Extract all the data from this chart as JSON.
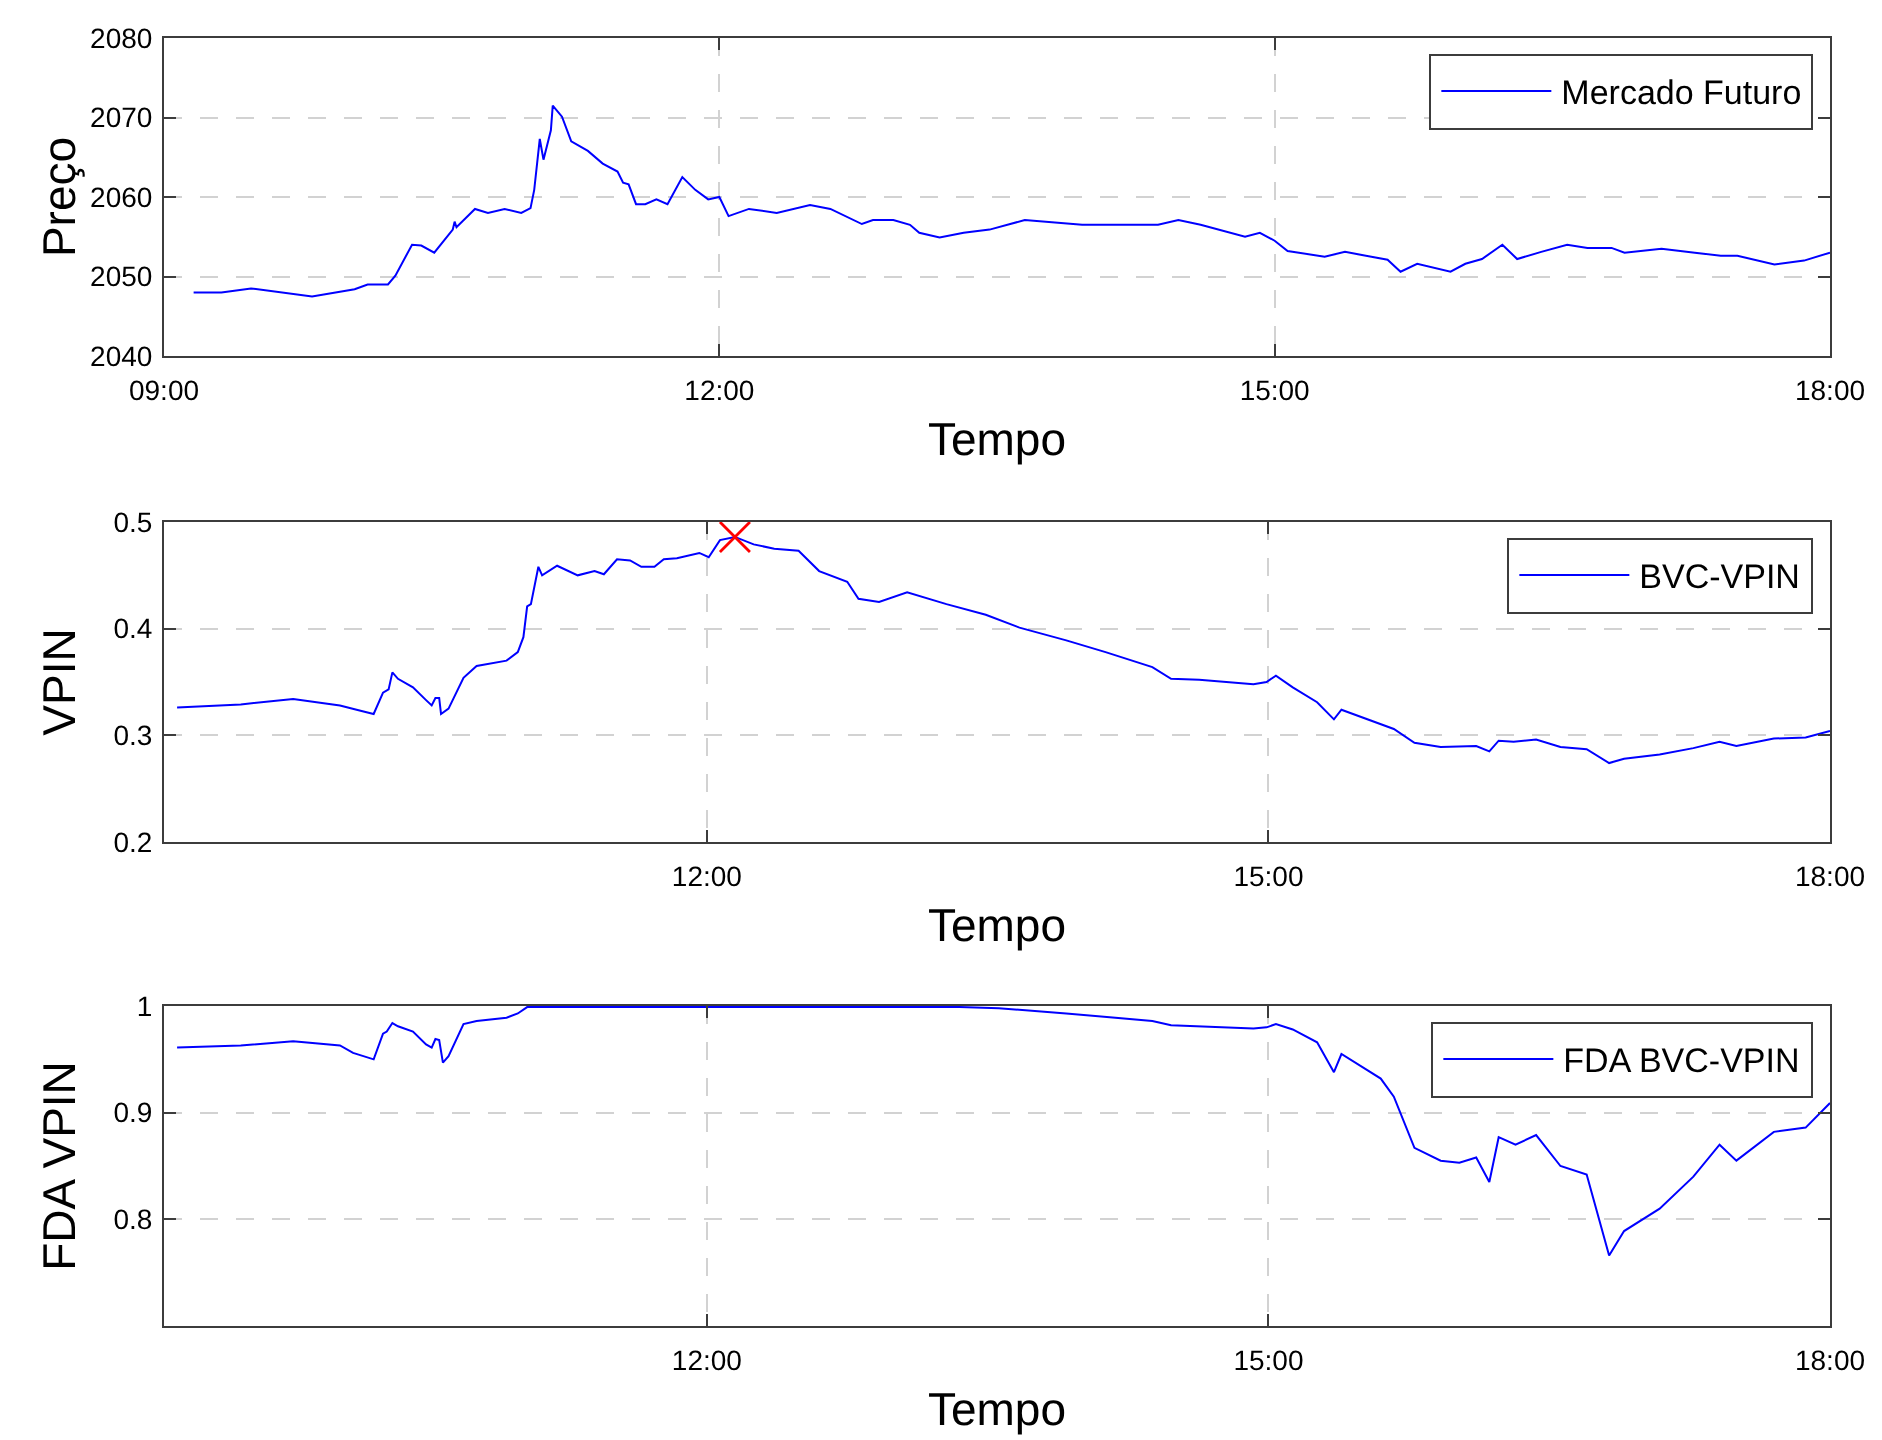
{
  "chart_data": [
    {
      "type": "line",
      "xlabel": "Tempo",
      "ylabel": "Preço",
      "xlim": [
        9,
        18
      ],
      "ylim": [
        2040,
        2080
      ],
      "xticks": [
        {
          "value": 9,
          "label": "09:00"
        },
        {
          "value": 12,
          "label": "12:00"
        },
        {
          "value": 15,
          "label": "15:00"
        },
        {
          "value": 18,
          "label": "18:00"
        }
      ],
      "yticks": [
        2040,
        2050,
        2060,
        2070,
        2080
      ],
      "grid": true,
      "legend": "top right",
      "x": [
        9.16,
        9.31,
        9.47,
        9.8,
        10.03,
        10.1,
        10.21,
        10.25,
        10.34,
        10.39,
        10.46,
        10.56,
        10.57,
        10.58,
        10.68,
        10.75,
        10.84,
        10.93,
        10.98,
        11.0,
        11.03,
        11.05,
        11.09,
        11.1,
        11.15,
        11.2,
        11.29,
        11.37,
        11.45,
        11.48,
        11.51,
        11.55,
        11.6,
        11.66,
        11.72,
        11.8,
        11.87,
        11.94,
        12.0,
        12.05,
        12.16,
        12.31,
        12.49,
        12.6,
        12.77,
        12.83,
        12.94,
        13.03,
        13.08,
        13.19,
        13.32,
        13.46,
        13.65,
        13.96,
        14.37,
        14.48,
        14.6,
        14.84,
        14.92,
        15.0,
        15.07,
        15.27,
        15.38,
        15.61,
        15.68,
        15.77,
        15.95,
        16.03,
        16.12,
        16.23,
        16.31,
        16.44,
        16.58,
        16.69,
        16.82,
        16.89,
        17.09,
        17.27,
        17.41,
        17.5,
        17.7,
        17.86,
        18.0
      ],
      "series": [
        {
          "name": "Mercado Futuro",
          "color": "#0000ff",
          "values": [
            2048.0,
            2048.0,
            2048.5,
            2047.5,
            2048.4,
            2049.0,
            2049.0,
            2050.1,
            2054.0,
            2053.9,
            2053.0,
            2055.9,
            2056.9,
            2056.2,
            2058.5,
            2058.0,
            2058.5,
            2058.0,
            2058.6,
            2060.9,
            2067.3,
            2064.7,
            2068.4,
            2071.5,
            2070.1,
            2067.0,
            2065.8,
            2064.2,
            2063.2,
            2061.8,
            2061.6,
            2059.1,
            2059.1,
            2059.7,
            2059.1,
            2062.5,
            2060.9,
            2059.7,
            2060.0,
            2057.6,
            2058.5,
            2058.0,
            2059.0,
            2058.5,
            2056.6,
            2057.1,
            2057.1,
            2056.5,
            2055.5,
            2054.9,
            2055.5,
            2055.9,
            2057.1,
            2056.5,
            2056.5,
            2057.1,
            2056.5,
            2055.0,
            2055.5,
            2054.5,
            2053.2,
            2052.5,
            2053.1,
            2052.1,
            2050.6,
            2051.6,
            2050.6,
            2051.6,
            2052.2,
            2054.0,
            2052.2,
            2053.1,
            2054.0,
            2053.6,
            2053.6,
            2053.0,
            2053.5,
            2053.0,
            2052.6,
            2052.6,
            2051.5,
            2052.0,
            2053.0
          ]
        }
      ]
    },
    {
      "type": "line",
      "xlabel": "Tempo",
      "ylabel": "VPIN",
      "xlim": [
        9.1,
        18
      ],
      "ylim": [
        0.2,
        0.5
      ],
      "xticks": [
        {
          "value": 12,
          "label": "12:00"
        },
        {
          "value": 15,
          "label": "15:00"
        },
        {
          "value": 18,
          "label": "18:00"
        }
      ],
      "yticks": [
        0.2,
        0.3,
        0.4,
        0.5
      ],
      "grid": true,
      "legend": "top right",
      "x": [
        9.17,
        9.51,
        9.79,
        10.04,
        10.15,
        10.22,
        10.27,
        10.3,
        10.32,
        10.35,
        10.43,
        10.5,
        10.53,
        10.55,
        10.57,
        10.58,
        10.62,
        10.7,
        10.77,
        10.93,
        10.99,
        11.02,
        11.04,
        11.06,
        11.1,
        11.12,
        11.2,
        11.31,
        11.4,
        11.45,
        11.52,
        11.59,
        11.65,
        11.72,
        11.77,
        11.84,
        11.96,
        12.01,
        12.07,
        12.15,
        12.25,
        12.36,
        12.49,
        12.6,
        12.75,
        12.81,
        12.92,
        13.07,
        13.28,
        13.49,
        13.67,
        13.92,
        14.13,
        14.38,
        14.48,
        14.63,
        14.92,
        14.99,
        15.04,
        15.13,
        15.26,
        15.35,
        15.39,
        15.67,
        15.78,
        15.92,
        16.11,
        16.18,
        16.23,
        16.31,
        16.43,
        16.56,
        16.7,
        16.82,
        16.9,
        17.09,
        17.27,
        17.41,
        17.5,
        17.7,
        17.87,
        18.0
      ],
      "series": [
        {
          "name": "BVC-VPIN",
          "color": "#0000ff",
          "values": [
            0.326,
            0.329,
            0.334,
            0.328,
            0.323,
            0.32,
            0.34,
            0.343,
            0.359,
            0.353,
            0.345,
            0.333,
            0.328,
            0.335,
            0.335,
            0.32,
            0.325,
            0.354,
            0.365,
            0.37,
            0.378,
            0.392,
            0.421,
            0.423,
            0.458,
            0.45,
            0.459,
            0.45,
            0.454,
            0.451,
            0.465,
            0.464,
            0.458,
            0.458,
            0.465,
            0.466,
            0.471,
            0.467,
            0.483,
            0.486,
            0.479,
            0.475,
            0.473,
            0.454,
            0.444,
            0.428,
            0.425,
            0.434,
            0.423,
            0.413,
            0.401,
            0.389,
            0.378,
            0.364,
            0.353,
            0.352,
            0.348,
            0.35,
            0.356,
            0.345,
            0.331,
            0.315,
            0.324,
            0.306,
            0.293,
            0.289,
            0.29,
            0.285,
            0.295,
            0.294,
            0.296,
            0.289,
            0.287,
            0.274,
            0.278,
            0.282,
            0.288,
            0.294,
            0.29,
            0.297,
            0.298,
            0.304
          ]
        },
        {
          "type": "scatter",
          "marker": "cross",
          "color": "#ff0000",
          "x": [
            12.15
          ],
          "values": [
            0.486
          ]
        }
      ]
    },
    {
      "type": "line",
      "xlabel": "Tempo",
      "ylabel": "FDA VPIN",
      "xlim": [
        9.1,
        18
      ],
      "ylim": [
        0.7,
        1
      ],
      "xticks": [
        {
          "value": 12,
          "label": "12:00"
        },
        {
          "value": 15,
          "label": "15:00"
        },
        {
          "value": 18,
          "label": "18:00"
        }
      ],
      "yticks": [
        0.8,
        0.9,
        1
      ],
      "grid": true,
      "legend": "top right",
      "x": [
        9.17,
        9.51,
        9.79,
        10.04,
        10.11,
        10.22,
        10.27,
        10.29,
        10.32,
        10.35,
        10.43,
        10.5,
        10.53,
        10.55,
        10.57,
        10.59,
        10.62,
        10.7,
        10.77,
        10.93,
        10.99,
        11.04,
        11.5,
        12.0,
        12.5,
        13.0,
        13.35,
        13.56,
        13.92,
        14.38,
        14.48,
        14.92,
        14.99,
        15.04,
        15.13,
        15.26,
        15.35,
        15.39,
        15.6,
        15.67,
        15.78,
        15.92,
        16.02,
        16.11,
        16.18,
        16.23,
        16.32,
        16.43,
        16.56,
        16.7,
        16.82,
        16.9,
        17.09,
        17.27,
        17.41,
        17.5,
        17.7,
        17.87,
        18.0
      ],
      "series": [
        {
          "name": "FDA BVC-VPIN",
          "color": "#0000ff",
          "values": [
            0.961,
            0.963,
            0.967,
            0.963,
            0.956,
            0.95,
            0.974,
            0.976,
            0.984,
            0.981,
            0.976,
            0.964,
            0.961,
            0.969,
            0.968,
            0.947,
            0.953,
            0.983,
            0.986,
            0.989,
            0.993,
            0.999,
            0.999,
            0.999,
            0.999,
            0.999,
            0.999,
            0.998,
            0.993,
            0.986,
            0.982,
            0.979,
            0.98,
            0.983,
            0.978,
            0.966,
            0.938,
            0.955,
            0.932,
            0.915,
            0.867,
            0.855,
            0.853,
            0.858,
            0.835,
            0.877,
            0.87,
            0.879,
            0.85,
            0.842,
            0.766,
            0.789,
            0.81,
            0.84,
            0.87,
            0.855,
            0.882,
            0.886,
            0.909
          ]
        }
      ]
    }
  ]
}
